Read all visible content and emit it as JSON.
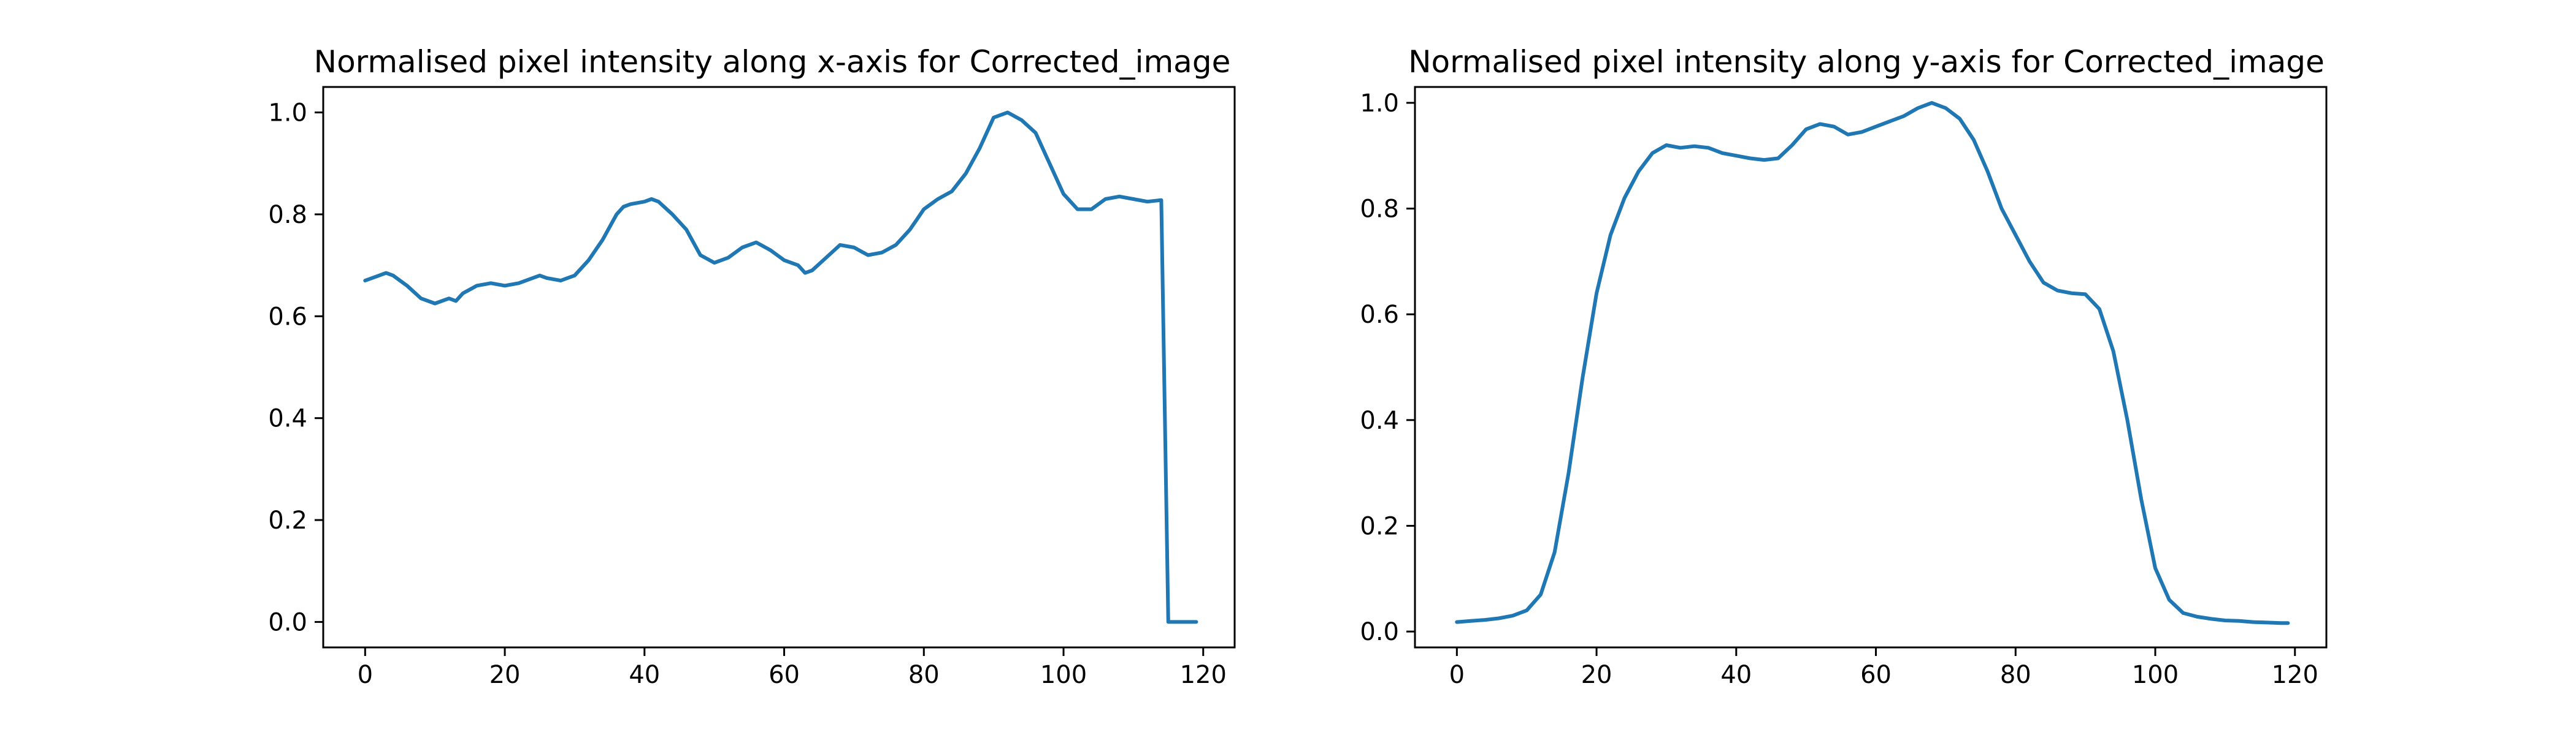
{
  "chart_data": [
    {
      "type": "line",
      "title": "Normalised pixel intensity along x-axis for Corrected_image",
      "xlabel": "",
      "ylabel": "",
      "xlim": [
        -6,
        124.5
      ],
      "ylim": [
        -0.05,
        1.05
      ],
      "xticks": [
        0,
        20,
        40,
        60,
        80,
        100,
        120
      ],
      "yticks": [
        0.0,
        0.2,
        0.4,
        0.6,
        0.8,
        1.0
      ],
      "xtick_labels": [
        "0",
        "20",
        "40",
        "60",
        "80",
        "100",
        "120"
      ],
      "ytick_labels": [
        "0.0",
        "0.2",
        "0.4",
        "0.6",
        "0.8",
        "1.0"
      ],
      "grid": false,
      "color": "#1f77b4",
      "series": [
        {
          "x": [
            0,
            2,
            3,
            4,
            6,
            8,
            10,
            12,
            13,
            14,
            16,
            18,
            20,
            22,
            24,
            25,
            26,
            28,
            29,
            30,
            32,
            34,
            36,
            37,
            38,
            40,
            41,
            42,
            44,
            46,
            48,
            50,
            52,
            54,
            56,
            58,
            60,
            62,
            63,
            64,
            66,
            68,
            70,
            72,
            74,
            76,
            78,
            79,
            80,
            82,
            84,
            86,
            88,
            90,
            92,
            94,
            96,
            98,
            100,
            102,
            104,
            106,
            108,
            110,
            112,
            114,
            115,
            117,
            119
          ],
          "y": [
            0.67,
            0.68,
            0.685,
            0.68,
            0.66,
            0.635,
            0.625,
            0.635,
            0.63,
            0.645,
            0.66,
            0.665,
            0.66,
            0.665,
            0.675,
            0.68,
            0.675,
            0.67,
            0.675,
            0.68,
            0.71,
            0.75,
            0.8,
            0.815,
            0.82,
            0.825,
            0.83,
            0.825,
            0.8,
            0.77,
            0.72,
            0.705,
            0.715,
            0.735,
            0.745,
            0.73,
            0.71,
            0.7,
            0.685,
            0.69,
            0.715,
            0.74,
            0.735,
            0.72,
            0.725,
            0.74,
            0.77,
            0.79,
            0.81,
            0.83,
            0.845,
            0.88,
            0.93,
            0.99,
            1.0,
            0.985,
            0.96,
            0.9,
            0.84,
            0.81,
            0.81,
            0.83,
            0.835,
            0.83,
            0.825,
            0.828,
            0.0,
            0.0,
            0.0
          ]
        }
      ]
    },
    {
      "type": "line",
      "title": "Normalised pixel intensity along y-axis for Corrected_image",
      "xlabel": "",
      "ylabel": "",
      "xlim": [
        -6,
        124.5
      ],
      "ylim": [
        -0.03,
        1.03
      ],
      "xticks": [
        0,
        20,
        40,
        60,
        80,
        100,
        120
      ],
      "yticks": [
        0.0,
        0.2,
        0.4,
        0.6,
        0.8,
        1.0
      ],
      "xtick_labels": [
        "0",
        "20",
        "40",
        "60",
        "80",
        "100",
        "120"
      ],
      "ytick_labels": [
        "0.0",
        "0.2",
        "0.4",
        "0.6",
        "0.8",
        "1.0"
      ],
      "grid": false,
      "color": "#1f77b4",
      "series": [
        {
          "x": [
            0,
            2,
            4,
            6,
            8,
            10,
            12,
            14,
            16,
            18,
            20,
            22,
            24,
            26,
            28,
            30,
            32,
            34,
            36,
            38,
            40,
            42,
            44,
            46,
            48,
            50,
            52,
            54,
            56,
            58,
            60,
            62,
            64,
            66,
            68,
            70,
            72,
            74,
            76,
            78,
            80,
            82,
            84,
            86,
            88,
            90,
            92,
            94,
            96,
            98,
            100,
            102,
            104,
            106,
            108,
            110,
            112,
            114,
            116,
            118,
            119
          ],
          "y": [
            0.018,
            0.02,
            0.022,
            0.025,
            0.03,
            0.04,
            0.07,
            0.15,
            0.3,
            0.48,
            0.64,
            0.75,
            0.82,
            0.87,
            0.905,
            0.92,
            0.915,
            0.918,
            0.915,
            0.905,
            0.9,
            0.895,
            0.892,
            0.895,
            0.92,
            0.95,
            0.96,
            0.955,
            0.94,
            0.945,
            0.955,
            0.965,
            0.975,
            0.99,
            1.0,
            0.99,
            0.97,
            0.93,
            0.87,
            0.8,
            0.75,
            0.7,
            0.66,
            0.645,
            0.64,
            0.638,
            0.61,
            0.53,
            0.4,
            0.25,
            0.12,
            0.06,
            0.035,
            0.028,
            0.024,
            0.021,
            0.02,
            0.018,
            0.017,
            0.016,
            0.016
          ]
        }
      ]
    }
  ]
}
